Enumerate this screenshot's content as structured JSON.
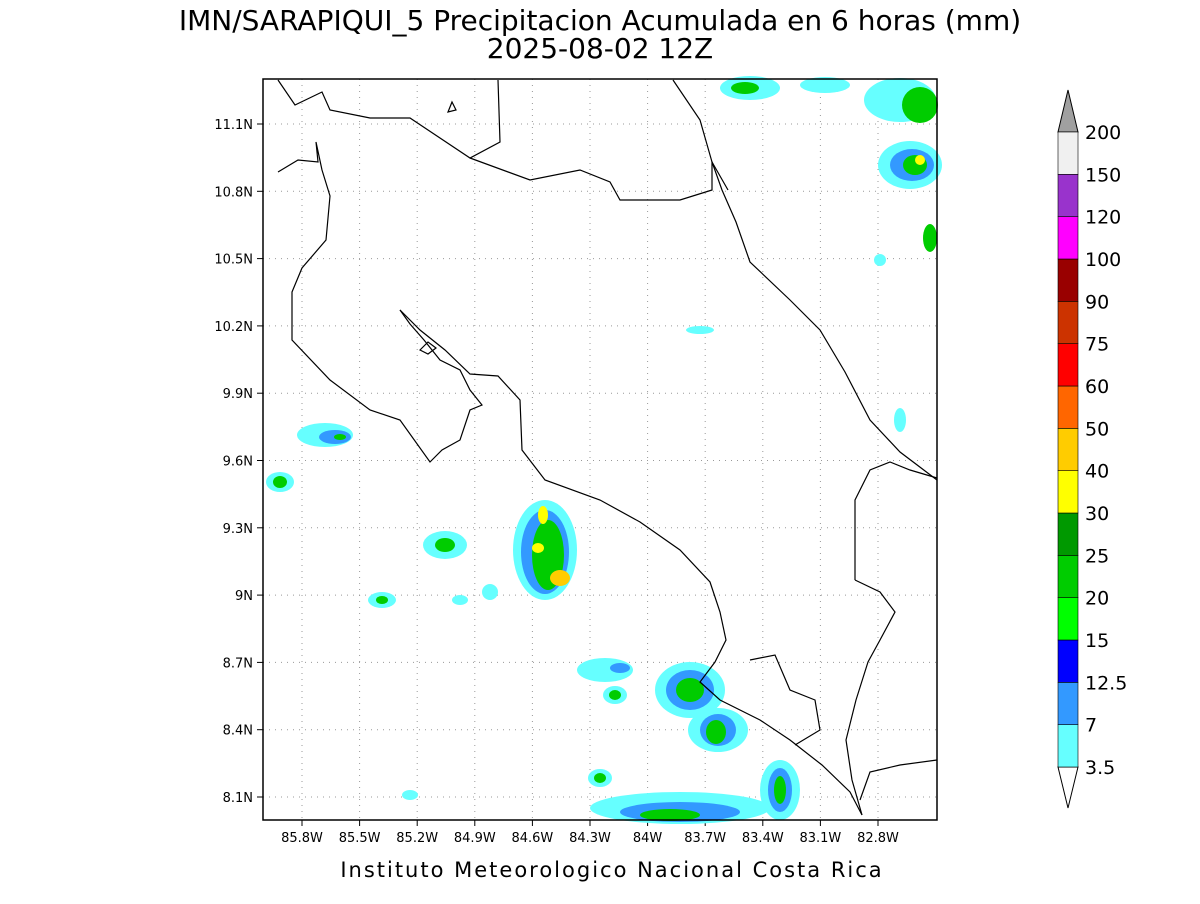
{
  "map": {
    "title": "IMN/SARAPIQUI_5 Precipitacion Acumulada en 6 horas (mm)",
    "subtitle": "2025-08-02 12Z",
    "lat_ticks": [
      {
        "value": 11.1,
        "label": "11.1N"
      },
      {
        "value": 10.8,
        "label": "10.8N"
      },
      {
        "value": 10.5,
        "label": "10.5N"
      },
      {
        "value": 10.2,
        "label": "10.2N"
      },
      {
        "value": 9.9,
        "label": "9.9N"
      },
      {
        "value": 9.6,
        "label": "9.6N"
      },
      {
        "value": 9.3,
        "label": "9.3N"
      },
      {
        "value": 9,
        "label": "9N"
      },
      {
        "value": 8.7,
        "label": "8.7N"
      },
      {
        "value": 8.4,
        "label": "8.4N"
      },
      {
        "value": 8.1,
        "label": "8.1N"
      }
    ],
    "lon_ticks": [
      {
        "value": 85.8,
        "label": "85.8W"
      },
      {
        "value": 85.5,
        "label": "85.5W"
      },
      {
        "value": 85.2,
        "label": "85.2W"
      },
      {
        "value": 84.9,
        "label": "84.9W"
      },
      {
        "value": 84.6,
        "label": "84.6W"
      },
      {
        "value": 84.3,
        "label": "84.3W"
      },
      {
        "value": 84,
        "label": "84W"
      },
      {
        "value": 83.7,
        "label": "83.7W"
      },
      {
        "value": 83.4,
        "label": "83.4W"
      },
      {
        "value": 83.1,
        "label": "83.1W"
      },
      {
        "value": 82.8,
        "label": "82.8W"
      }
    ],
    "colorbar": {
      "under_color": "#ffffff",
      "over_color": "#a0a0a0",
      "levels": [
        {
          "value": 3.5,
          "color": "#66ffff"
        },
        {
          "value": 7,
          "color": "#3399ff"
        },
        {
          "value": 12.5,
          "color": "#0000ff"
        },
        {
          "value": 15,
          "color": "#00ff00"
        },
        {
          "value": 20,
          "color": "#00cc00"
        },
        {
          "value": 25,
          "color": "#009900"
        },
        {
          "value": 30,
          "color": "#ffff00"
        },
        {
          "value": 40,
          "color": "#ffcc00"
        },
        {
          "value": 50,
          "color": "#ff6600"
        },
        {
          "value": 60,
          "color": "#ff0000"
        },
        {
          "value": 75,
          "color": "#cc3300"
        },
        {
          "value": 90,
          "color": "#990000"
        },
        {
          "value": 100,
          "color": "#ff00ff"
        },
        {
          "value": 120,
          "color": "#9933cc"
        },
        {
          "value": 150,
          "color": "#f0f0f0"
        },
        {
          "value": 200,
          "color": "#a0a0a0"
        }
      ]
    },
    "footer": "Instituto Meteorologico Nacional Costa Rica"
  }
}
